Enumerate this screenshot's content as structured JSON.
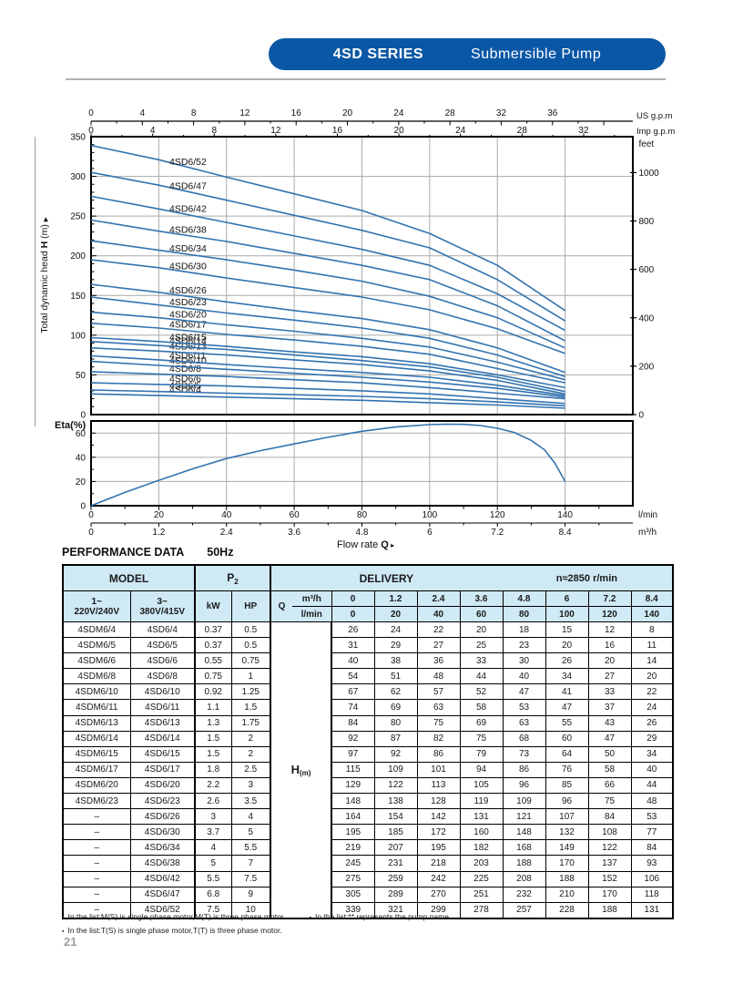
{
  "header": {
    "series_label": "4SD SERIES",
    "product_label": "Submersible Pump"
  },
  "colors": {
    "pill_blue": "#0a57a5",
    "curve_blue": "#3273b0",
    "grid_gray": "#aaaaaa",
    "table_header_bg": "#cfe9f5",
    "page_number_gray": "#9e9e9e"
  },
  "chart_data": [
    {
      "type": "line",
      "name": "head-flow-curves",
      "ylabel": "Total dynamic head H (m)",
      "ylim": [
        0,
        350
      ],
      "xlim_lmin": [
        0,
        160
      ],
      "y_ticks_m": [
        0,
        50,
        100,
        150,
        200,
        250,
        300,
        350
      ],
      "right_axis_label": "feet",
      "y_ticks_feet": [
        0,
        200,
        400,
        600,
        800,
        1000
      ],
      "x_axis_us": {
        "label": "US g.p.m",
        "ticks": [
          0,
          4,
          8,
          12,
          16,
          20,
          24,
          28,
          32,
          36
        ]
      },
      "x_axis_imp": {
        "label": "Imp g.p.m",
        "ticks": [
          0,
          4,
          8,
          12,
          16,
          20,
          24,
          28,
          32
        ]
      },
      "x_m3h": [
        0,
        1.2,
        2.4,
        3.6,
        4.8,
        6,
        7.2,
        8.4
      ],
      "grid": true,
      "series": [
        {
          "name": "4SD6/4",
          "values": [
            26,
            24,
            22,
            20,
            18,
            15,
            12,
            8
          ]
        },
        {
          "name": "4SD6/5",
          "values": [
            31,
            29,
            27,
            25,
            23,
            20,
            16,
            11
          ]
        },
        {
          "name": "4SD6/6",
          "values": [
            40,
            38,
            36,
            33,
            30,
            26,
            20,
            14
          ]
        },
        {
          "name": "4SD6/8",
          "values": [
            54,
            51,
            48,
            44,
            40,
            34,
            27,
            20
          ]
        },
        {
          "name": "4SD6/10",
          "values": [
            67,
            62,
            57,
            52,
            47,
            41,
            33,
            22
          ]
        },
        {
          "name": "4SD6/11",
          "values": [
            74,
            69,
            63,
            58,
            53,
            47,
            37,
            24
          ]
        },
        {
          "name": "4SD6/13",
          "values": [
            84,
            80,
            75,
            69,
            63,
            55,
            43,
            26
          ]
        },
        {
          "name": "4SD6/14",
          "values": [
            92,
            87,
            82,
            75,
            68,
            60,
            47,
            29
          ]
        },
        {
          "name": "4SD6/15",
          "values": [
            97,
            92,
            86,
            79,
            73,
            64,
            50,
            34
          ]
        },
        {
          "name": "4SD6/17",
          "values": [
            115,
            109,
            101,
            94,
            86,
            76,
            58,
            40
          ]
        },
        {
          "name": "4SD6/20",
          "values": [
            129,
            122,
            113,
            105,
            96,
            85,
            66,
            44
          ]
        },
        {
          "name": "4SD6/23",
          "values": [
            148,
            138,
            128,
            119,
            109,
            96,
            75,
            48
          ]
        },
        {
          "name": "4SD6/26",
          "values": [
            164,
            154,
            142,
            131,
            121,
            107,
            84,
            53
          ]
        },
        {
          "name": "4SD6/30",
          "values": [
            195,
            185,
            172,
            160,
            148,
            132,
            108,
            77
          ]
        },
        {
          "name": "4SD6/34",
          "values": [
            219,
            207,
            195,
            182,
            168,
            149,
            122,
            84
          ]
        },
        {
          "name": "4SD6/38",
          "values": [
            245,
            231,
            218,
            203,
            188,
            170,
            137,
            93
          ]
        },
        {
          "name": "4SD6/42",
          "values": [
            275,
            259,
            242,
            225,
            208,
            188,
            152,
            106
          ]
        },
        {
          "name": "4SD6/47",
          "values": [
            305,
            289,
            270,
            251,
            232,
            210,
            170,
            118
          ]
        },
        {
          "name": "4SD6/52",
          "values": [
            339,
            321,
            299,
            278,
            257,
            228,
            188,
            131
          ]
        }
      ]
    },
    {
      "type": "line",
      "name": "efficiency-curve",
      "ylabel": "Eta(%)",
      "ylim": [
        0,
        70
      ],
      "y_ticks": [
        0,
        20,
        40,
        60
      ],
      "x_lmin_ticks": [
        0,
        20,
        40,
        60,
        80,
        100,
        120,
        140
      ],
      "x_m3h_ticks": [
        "0",
        "1.2",
        "2.4",
        "3.6",
        "4.8",
        "6",
        "7.2",
        "8.4"
      ],
      "x_unit_lmin": "l/min",
      "x_unit_m3h": "m³/h",
      "xlabel": "Flow rate",
      "xlabel_q": "Q",
      "x_lmin": [
        0,
        10,
        20,
        30,
        40,
        50,
        60,
        70,
        80,
        90,
        100,
        105,
        110,
        115,
        120,
        125,
        130,
        134,
        137,
        140
      ],
      "eta": [
        0,
        11,
        21,
        30.5,
        39,
        45.5,
        51,
        56.5,
        61.5,
        65,
        67,
        67.4,
        67.2,
        66.2,
        64,
        60.5,
        54,
        46,
        35,
        20
      ]
    }
  ],
  "performance": {
    "title": "PERFORMANCE  DATA",
    "frequency": "50Hz",
    "table": {
      "model_header": "MODEL",
      "p2_label": "P",
      "p2_sub": "2",
      "delivery_header": "DELIVERY",
      "speed": "n≈2850 r/min",
      "phase1_line1": "1~",
      "phase1_line2": "220V/240V",
      "phase3_line1": "3~",
      "phase3_line2": "380V/415V",
      "kw_header": "kW",
      "hp_header": "HP",
      "q_header": "Q",
      "m3h_label": "m³/h",
      "lmin_label": "l/min",
      "m3h_values": [
        "0",
        "1.2",
        "2.4",
        "3.6",
        "4.8",
        "6",
        "7.2",
        "8.4"
      ],
      "lmin_values": [
        "0",
        "20",
        "40",
        "60",
        "80",
        "100",
        "120",
        "140"
      ],
      "h_cell_label": "H",
      "h_cell_sub": "(m)",
      "rows": [
        {
          "single": "4SDM6/4",
          "three": "4SD6/4",
          "kw": "0.37",
          "hp": "0.5",
          "h": [
            "26",
            "24",
            "22",
            "20",
            "18",
            "15",
            "12",
            "8"
          ]
        },
        {
          "single": "4SDM6/5",
          "three": "4SD6/5",
          "kw": "0.37",
          "hp": "0.5",
          "h": [
            "31",
            "29",
            "27",
            "25",
            "23",
            "20",
            "16",
            "11"
          ]
        },
        {
          "single": "4SDM6/6",
          "three": "4SD6/6",
          "kw": "0.55",
          "hp": "0.75",
          "h": [
            "40",
            "38",
            "36",
            "33",
            "30",
            "26",
            "20",
            "14"
          ]
        },
        {
          "single": "4SDM6/8",
          "three": "4SD6/8",
          "kw": "0.75",
          "hp": "1",
          "h": [
            "54",
            "51",
            "48",
            "44",
            "40",
            "34",
            "27",
            "20"
          ]
        },
        {
          "single": "4SDM6/10",
          "three": "4SD6/10",
          "kw": "0.92",
          "hp": "1.25",
          "h": [
            "67",
            "62",
            "57",
            "52",
            "47",
            "41",
            "33",
            "22"
          ]
        },
        {
          "single": "4SDM6/11",
          "three": "4SD6/11",
          "kw": "1.1",
          "hp": "1.5",
          "h": [
            "74",
            "69",
            "63",
            "58",
            "53",
            "47",
            "37",
            "24"
          ]
        },
        {
          "single": "4SDM6/13",
          "three": "4SD6/13",
          "kw": "1.3",
          "hp": "1.75",
          "h": [
            "84",
            "80",
            "75",
            "69",
            "63",
            "55",
            "43",
            "26"
          ]
        },
        {
          "single": "4SDM6/14",
          "three": "4SD6/14",
          "kw": "1.5",
          "hp": "2",
          "h": [
            "92",
            "87",
            "82",
            "75",
            "68",
            "60",
            "47",
            "29"
          ]
        },
        {
          "single": "4SDM6/15",
          "three": "4SD6/15",
          "kw": "1.5",
          "hp": "2",
          "h": [
            "97",
            "92",
            "86",
            "79",
            "73",
            "64",
            "50",
            "34"
          ]
        },
        {
          "single": "4SDM6/17",
          "three": "4SD6/17",
          "kw": "1.8",
          "hp": "2.5",
          "h": [
            "115",
            "109",
            "101",
            "94",
            "86",
            "76",
            "58",
            "40"
          ]
        },
        {
          "single": "4SDM6/20",
          "three": "4SD6/20",
          "kw": "2.2",
          "hp": "3",
          "h": [
            "129",
            "122",
            "113",
            "105",
            "96",
            "85",
            "66",
            "44"
          ]
        },
        {
          "single": "4SDM6/23",
          "three": "4SD6/23",
          "kw": "2.6",
          "hp": "3.5",
          "h": [
            "148",
            "138",
            "128",
            "119",
            "109",
            "96",
            "75",
            "48"
          ]
        },
        {
          "single": "–",
          "three": "4SD6/26",
          "kw": "3",
          "hp": "4",
          "h": [
            "164",
            "154",
            "142",
            "131",
            "121",
            "107",
            "84",
            "53"
          ]
        },
        {
          "single": "–",
          "three": "4SD6/30",
          "kw": "3.7",
          "hp": "5",
          "h": [
            "195",
            "185",
            "172",
            "160",
            "148",
            "132",
            "108",
            "77"
          ]
        },
        {
          "single": "–",
          "three": "4SD6/34",
          "kw": "4",
          "hp": "5.5",
          "h": [
            "219",
            "207",
            "195",
            "182",
            "168",
            "149",
            "122",
            "84"
          ]
        },
        {
          "single": "–",
          "three": "4SD6/38",
          "kw": "5",
          "hp": "7",
          "h": [
            "245",
            "231",
            "218",
            "203",
            "188",
            "170",
            "137",
            "93"
          ]
        },
        {
          "single": "–",
          "three": "4SD6/42",
          "kw": "5.5",
          "hp": "7.5",
          "h": [
            "275",
            "259",
            "242",
            "225",
            "208",
            "188",
            "152",
            "106"
          ]
        },
        {
          "single": "–",
          "three": "4SD6/47",
          "kw": "6.8",
          "hp": "9",
          "h": [
            "305",
            "289",
            "270",
            "251",
            "232",
            "210",
            "170",
            "118"
          ]
        },
        {
          "single": "–",
          "three": "4SD6/52",
          "kw": "7.5",
          "hp": "10",
          "h": [
            "339",
            "321",
            "299",
            "278",
            "257",
            "228",
            "188",
            "131"
          ]
        }
      ]
    }
  },
  "footnotes": [
    "In the list:M(S) is single phase motor,M(T) is three phase motor.",
    "In the list:** represents the pump name.",
    "In the list:T(S) is single phase motor,T(T) is three phase motor."
  ],
  "page_number": "21"
}
